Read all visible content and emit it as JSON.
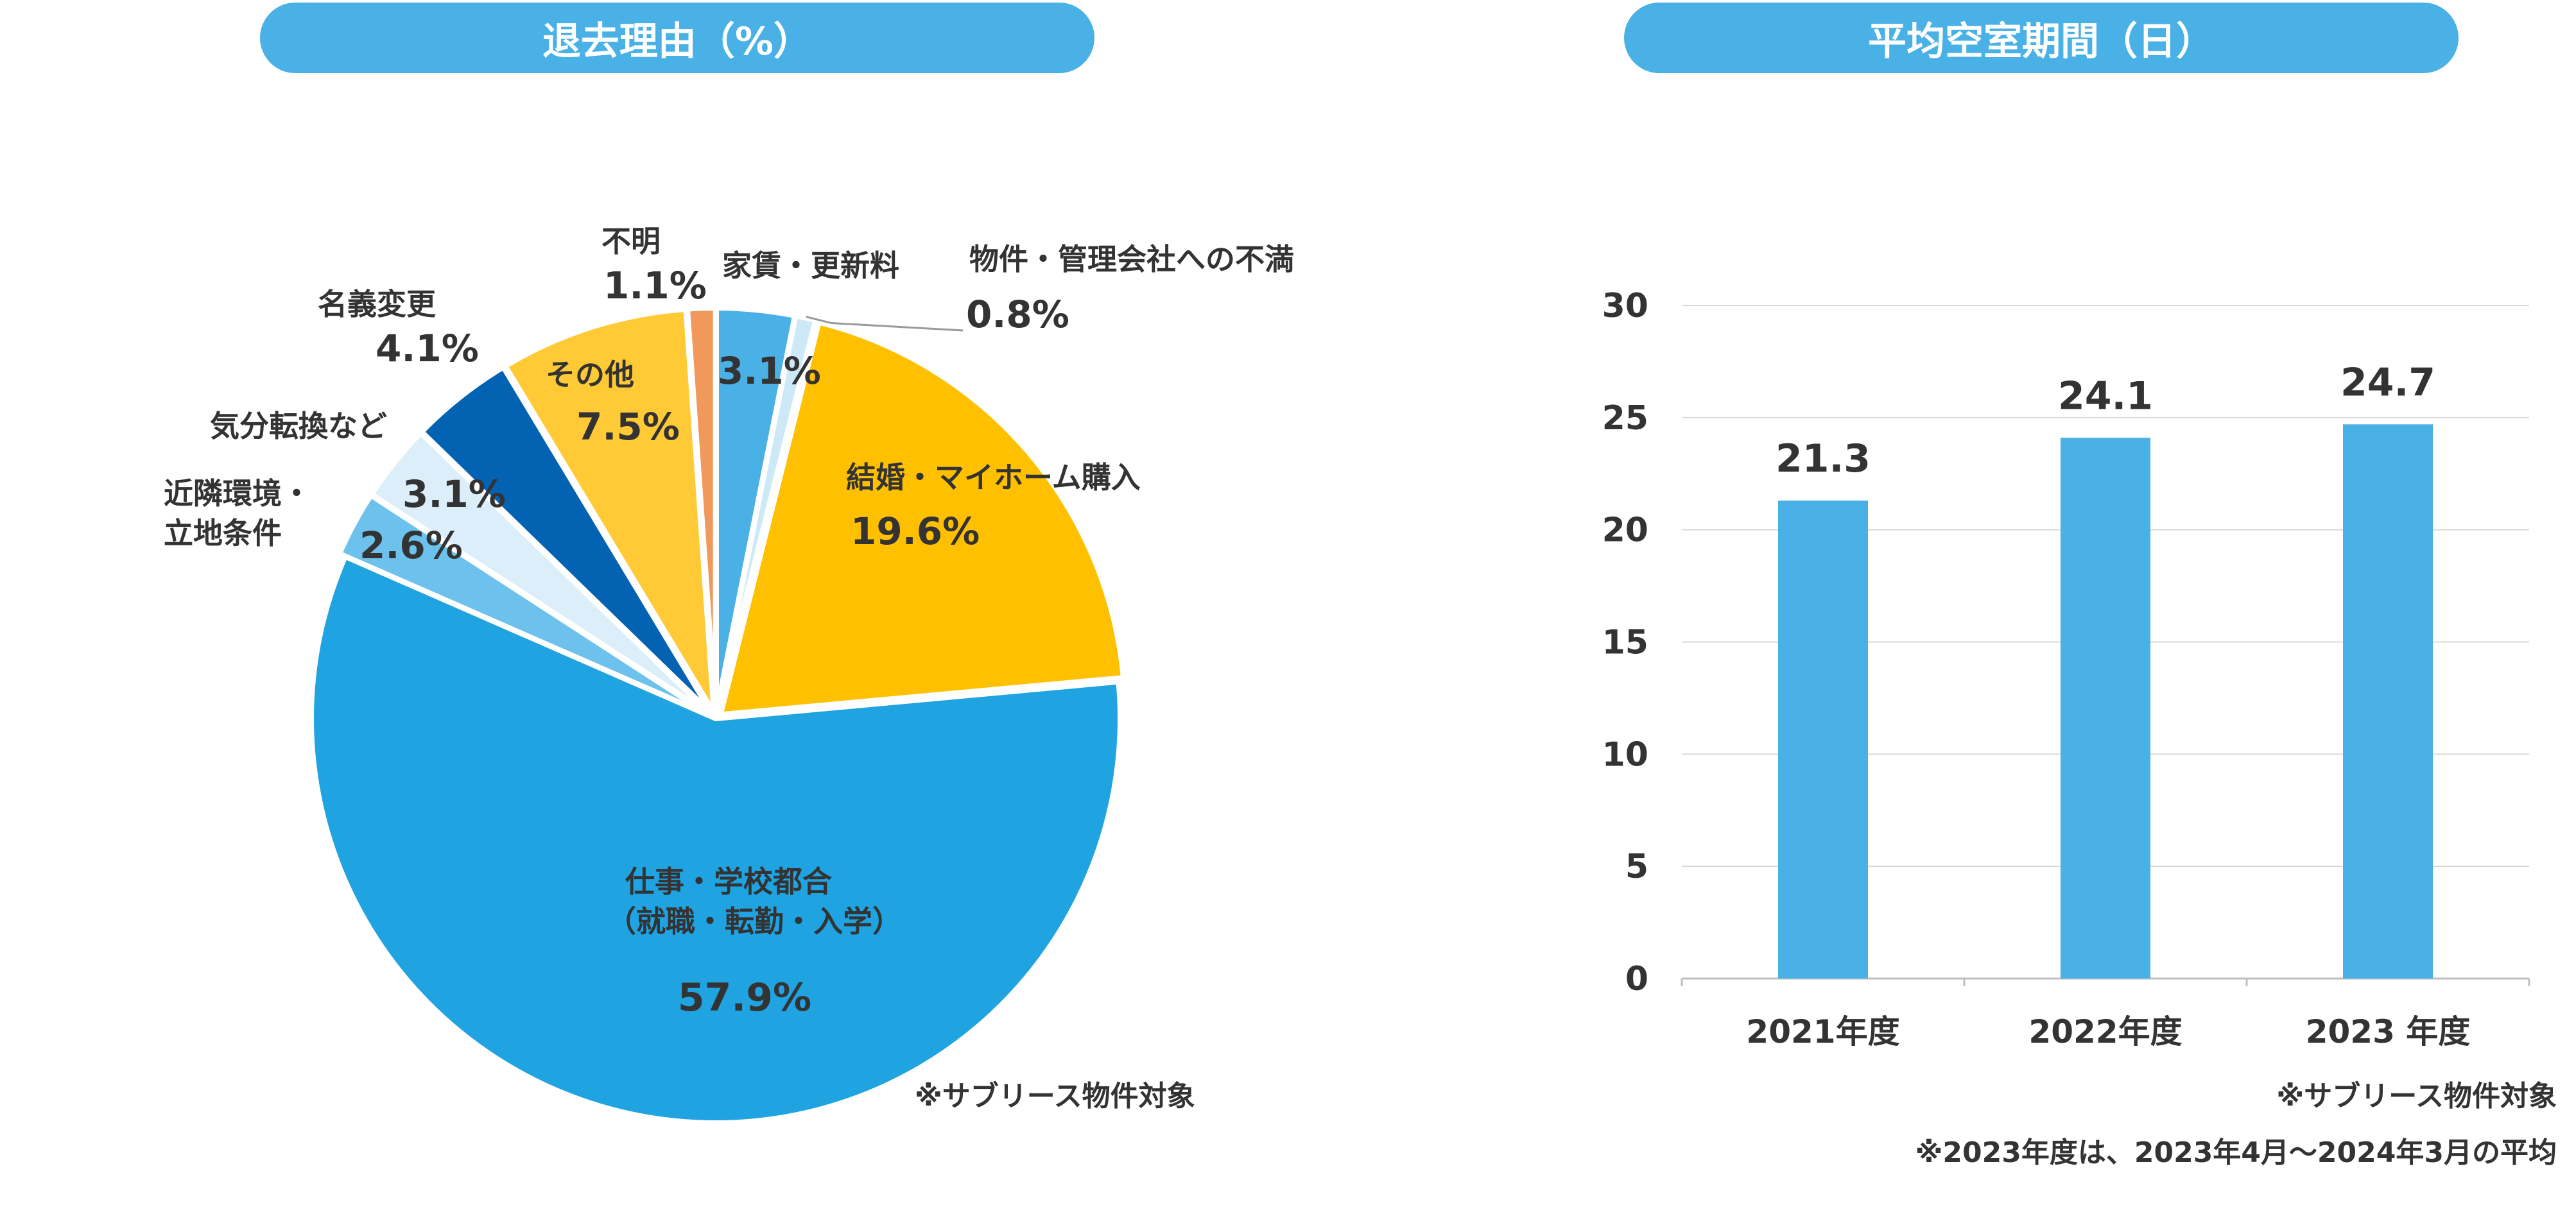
{
  "chart_data": [
    {
      "type": "pie",
      "title": "退去理由（%）",
      "note": "※サブリース物件対象",
      "slices": [
        {
          "label": "家賃・更新料",
          "value": 3.1,
          "color": "#49b1e5"
        },
        {
          "label": "物件・管理会社への不満",
          "value": 0.8,
          "color": "#cde9f8"
        },
        {
          "label": "結婚・マイホーム購入",
          "value": 19.6,
          "color": "#ffc000"
        },
        {
          "label": "仕事・学校都合\n（就職・転勤・入学）",
          "value": 57.9,
          "color": "#1fa3e1"
        },
        {
          "label": "近隣環境・\n立地条件",
          "value": 2.6,
          "color": "#6cc2ec"
        },
        {
          "label": "気分転換など",
          "value": 3.1,
          "color": "#dceefa"
        },
        {
          "label": "名義変更",
          "value": 4.1,
          "color": "#0462b3"
        },
        {
          "label": "その他",
          "value": 7.5,
          "color": "#ffca35"
        },
        {
          "label": "不明",
          "value": 1.1,
          "color": "#f0995a"
        }
      ]
    },
    {
      "type": "bar",
      "title": "平均空室期間（日）",
      "categories": [
        "2021年度",
        "2022年度",
        "2023 年度"
      ],
      "values": [
        21.3,
        24.1,
        24.7
      ],
      "value_labels": [
        "21.3",
        "24.1",
        "24.7"
      ],
      "ylim": [
        0,
        30
      ],
      "yticks": [
        "0",
        "5",
        "10",
        "15",
        "20",
        "25",
        "30"
      ],
      "grid": true,
      "bar_color": "#49b1e5",
      "notes": [
        "※サブリース物件対象",
        "※2023年度は、2023年4月～2024年3月の平均"
      ]
    }
  ]
}
